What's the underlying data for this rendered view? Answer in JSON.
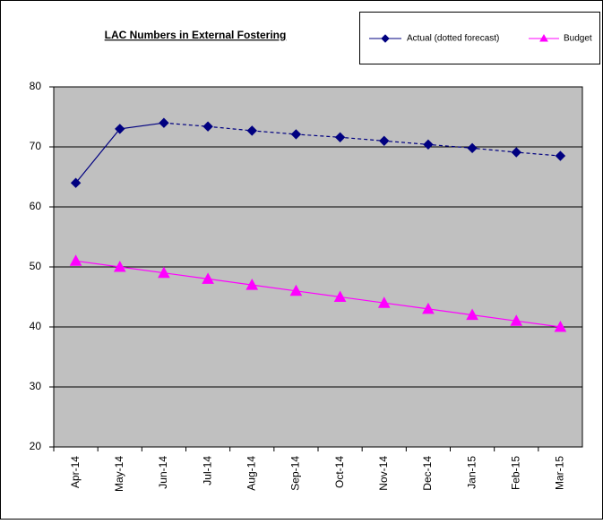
{
  "chart_data": {
    "type": "line",
    "title": "LAC Numbers in External Fostering",
    "categories": [
      "Apr-14",
      "May-14",
      "Jun-14",
      "Jul-14",
      "Aug-14",
      "Sep-14",
      "Oct-14",
      "Nov-14",
      "Dec-14",
      "Jan-15",
      "Feb-15",
      "Mar-15"
    ],
    "series": [
      {
        "name": "Actual (dotted forecast)",
        "color": "#000080",
        "marker": "diamond",
        "dash_from": 2,
        "values": [
          64,
          73,
          74,
          73.4,
          72.7,
          72.1,
          71.6,
          71,
          70.4,
          69.8,
          69.1,
          68.5
        ]
      },
      {
        "name": "Budget",
        "color": "#ff00ff",
        "marker": "triangle",
        "values": [
          51,
          50,
          49,
          48,
          47,
          46,
          45,
          44,
          43,
          42,
          41,
          40
        ]
      }
    ],
    "ylim": [
      20,
      80
    ],
    "yticks": [
      20,
      30,
      40,
      50,
      60,
      70,
      80
    ],
    "grid": true,
    "plot_background": "#c0c0c0",
    "legend": "top-right"
  }
}
